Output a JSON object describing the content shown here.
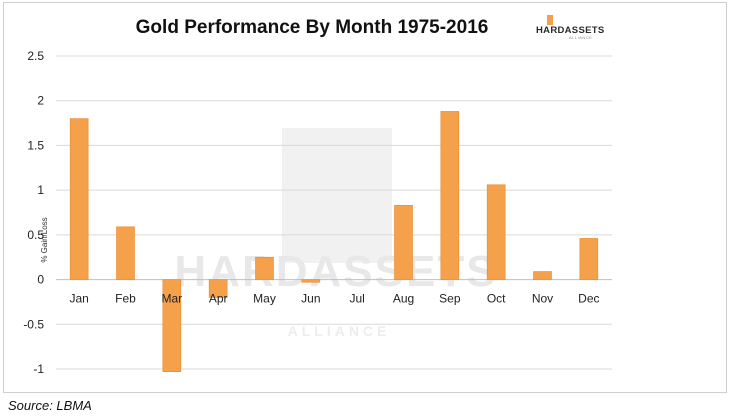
{
  "chart_data": {
    "type": "bar",
    "title": "Gold Performance By Month 1975-2016",
    "ylabel": "% Gain/Loss",
    "xlabel": "",
    "categories": [
      "Jan",
      "Feb",
      "Mar",
      "Apr",
      "May",
      "Jun",
      "Jul",
      "Aug",
      "Sep",
      "Oct",
      "Nov",
      "Dec"
    ],
    "values": [
      1.8,
      0.59,
      -1.03,
      -0.2,
      0.25,
      -0.03,
      0.0,
      0.83,
      1.88,
      1.06,
      0.09,
      0.46
    ],
    "ylim": [
      -1,
      2.5
    ],
    "yticks": [
      "2.5",
      "2",
      "1.5",
      "1",
      "0.5",
      "0",
      "-0.5",
      "-1"
    ],
    "ytick_values": [
      2.5,
      2,
      1.5,
      1,
      0.5,
      0,
      -0.5,
      -1
    ],
    "grid": true,
    "colors": {
      "bar": "#f5a04a",
      "grid": "#d9d9d9"
    }
  },
  "logo": {
    "main": "HARDASSETS",
    "sub": "ALLIANCE"
  },
  "watermark": {
    "main": "HARDASSETS",
    "sub": "ALLIANCE"
  },
  "source": "Source: LBMA"
}
